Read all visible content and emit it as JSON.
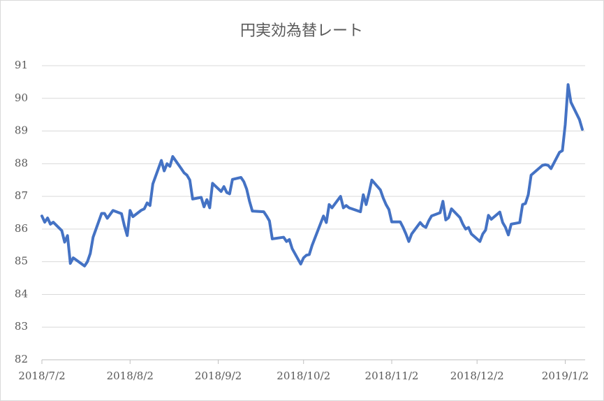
{
  "chart_data": {
    "type": "line",
    "title": "円実効為替レート",
    "color": "#4472c4",
    "grid": true,
    "ylim": [
      82,
      91
    ],
    "yticks": [
      82,
      83,
      84,
      85,
      86,
      87,
      88,
      89,
      90,
      91
    ],
    "xlim": [
      "2018/7/2",
      "2019/1/9"
    ],
    "xticks": [
      "2018/7/2",
      "2018/8/2",
      "2018/9/2",
      "2018/10/2",
      "2018/11/2",
      "2018/12/2",
      "2019/1/2"
    ],
    "x": [
      "2018/7/2",
      "2018/7/3",
      "2018/7/4",
      "2018/7/5",
      "2018/7/6",
      "2018/7/9",
      "2018/7/10",
      "2018/7/11",
      "2018/7/12",
      "2018/7/13",
      "2018/7/17",
      "2018/7/18",
      "2018/7/19",
      "2018/7/20",
      "2018/7/23",
      "2018/7/24",
      "2018/7/25",
      "2018/7/26",
      "2018/7/27",
      "2018/7/30",
      "2018/7/31",
      "2018/8/1",
      "2018/8/2",
      "2018/8/3",
      "2018/8/6",
      "2018/8/7",
      "2018/8/8",
      "2018/8/9",
      "2018/8/10",
      "2018/8/13",
      "2018/8/14",
      "2018/8/15",
      "2018/8/16",
      "2018/8/17",
      "2018/8/20",
      "2018/8/21",
      "2018/8/22",
      "2018/8/23",
      "2018/8/24",
      "2018/8/27",
      "2018/8/28",
      "2018/8/29",
      "2018/8/30",
      "2018/8/31",
      "2018/9/3",
      "2018/9/4",
      "2018/9/5",
      "2018/9/6",
      "2018/9/7",
      "2018/9/10",
      "2018/9/11",
      "2018/9/12",
      "2018/9/13",
      "2018/9/14",
      "2018/9/18",
      "2018/9/19",
      "2018/9/20",
      "2018/9/21",
      "2018/9/25",
      "2018/9/26",
      "2018/9/27",
      "2018/9/28",
      "2018/10/1",
      "2018/10/2",
      "2018/10/3",
      "2018/10/4",
      "2018/10/5",
      "2018/10/9",
      "2018/10/10",
      "2018/10/11",
      "2018/10/12",
      "2018/10/15",
      "2018/10/16",
      "2018/10/17",
      "2018/10/18",
      "2018/10/19",
      "2018/10/22",
      "2018/10/23",
      "2018/10/24",
      "2018/10/25",
      "2018/10/26",
      "2018/10/29",
      "2018/10/30",
      "2018/10/31",
      "2018/11/1",
      "2018/11/2",
      "2018/11/5",
      "2018/11/6",
      "2018/11/7",
      "2018/11/8",
      "2018/11/9",
      "2018/11/12",
      "2018/11/13",
      "2018/11/14",
      "2018/11/15",
      "2018/11/16",
      "2018/11/19",
      "2018/11/20",
      "2018/11/21",
      "2018/11/22",
      "2018/11/23",
      "2018/11/26",
      "2018/11/27",
      "2018/11/28",
      "2018/11/29",
      "2018/11/30",
      "2018/12/3",
      "2018/12/4",
      "2018/12/5",
      "2018/12/6",
      "2018/12/7",
      "2018/12/10",
      "2018/12/11",
      "2018/12/12",
      "2018/12/13",
      "2018/12/14",
      "2018/12/17",
      "2018/12/18",
      "2018/12/19",
      "2018/12/20",
      "2018/12/21",
      "2018/12/25",
      "2018/12/26",
      "2018/12/27",
      "2018/12/28",
      "2018/12/31",
      "2019/1/1",
      "2019/1/2",
      "2019/1/3",
      "2019/1/4",
      "2019/1/7",
      "2019/1/8"
    ],
    "values": [
      86.4,
      86.21,
      86.34,
      86.15,
      86.21,
      85.95,
      85.6,
      85.8,
      84.95,
      85.12,
      84.87,
      85.0,
      85.25,
      85.75,
      86.48,
      86.48,
      86.33,
      86.45,
      86.57,
      86.47,
      86.1,
      85.8,
      86.57,
      86.38,
      86.58,
      86.62,
      86.8,
      86.72,
      87.38,
      88.1,
      87.78,
      88.0,
      87.92,
      88.22,
      87.85,
      87.72,
      87.65,
      87.5,
      86.92,
      86.97,
      86.68,
      86.9,
      86.65,
      87.4,
      87.15,
      87.3,
      87.12,
      87.08,
      87.52,
      87.58,
      87.45,
      87.22,
      86.85,
      86.55,
      86.53,
      86.4,
      86.25,
      85.7,
      85.75,
      85.62,
      85.68,
      85.4,
      84.93,
      85.12,
      85.2,
      85.22,
      85.5,
      86.4,
      86.2,
      86.75,
      86.65,
      87.0,
      86.65,
      86.72,
      86.65,
      86.62,
      86.53,
      87.05,
      86.75,
      87.1,
      87.5,
      87.2,
      86.95,
      86.75,
      86.6,
      86.22,
      86.22,
      86.05,
      85.85,
      85.62,
      85.85,
      86.2,
      86.1,
      86.05,
      86.25,
      86.4,
      86.5,
      86.85,
      86.28,
      86.35,
      86.62,
      86.35,
      86.15,
      86.0,
      86.05,
      85.85,
      85.62,
      85.85,
      85.97,
      86.42,
      86.3,
      86.52,
      86.2,
      86.05,
      85.82,
      86.15,
      86.2,
      86.75,
      86.78,
      87.05,
      87.65,
      87.95,
      87.97,
      87.95,
      87.85,
      88.35,
      88.4,
      89.2,
      90.42,
      89.88,
      89.35,
      89.05
    ]
  }
}
